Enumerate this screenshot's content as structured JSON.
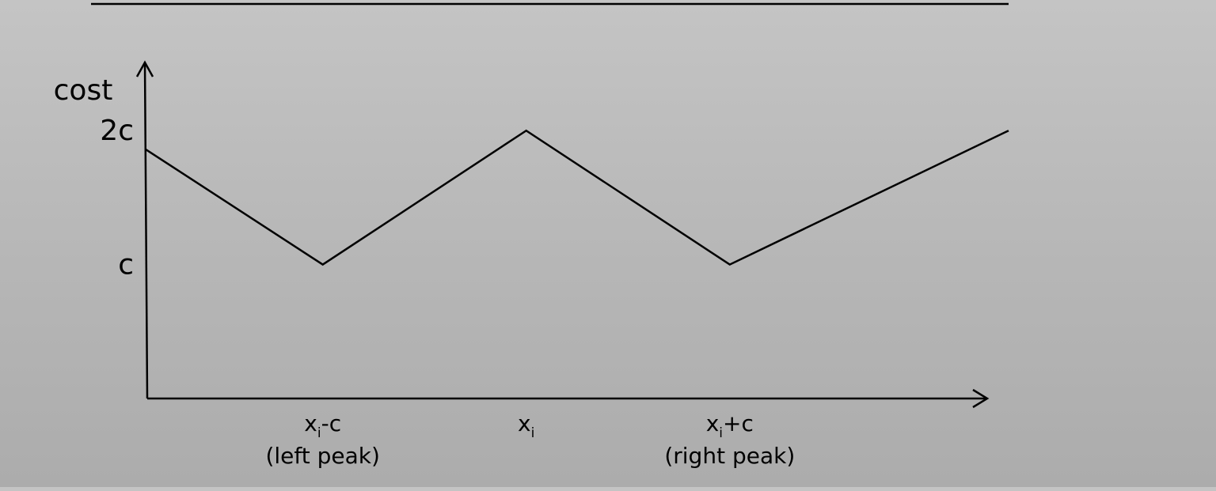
{
  "colors": {
    "background_top": "#c4c4c4",
    "background_bottom": "#acacac",
    "ink": "#000000"
  },
  "chart_data": {
    "type": "line",
    "title": "",
    "xlabel": "",
    "ylabel": "cost",
    "x_ticks": [
      {
        "x": -1,
        "base": "x",
        "sub": "i",
        "suffix": "-c",
        "note": "(left peak)"
      },
      {
        "x": 0,
        "base": "x",
        "sub": "i",
        "suffix": "",
        "note": ""
      },
      {
        "x": 1,
        "base": "x",
        "sub": "i",
        "suffix": "+c",
        "note": "(right peak)"
      }
    ],
    "y_ticks": [
      {
        "y": 2,
        "label": "2c"
      },
      {
        "y": 1,
        "label": "c"
      }
    ],
    "xlim": [
      -1.87,
      2.37
    ],
    "ylim": [
      0,
      2.45
    ],
    "grid": false,
    "series": [
      {
        "points": [
          [
            -1.87,
            1.86
          ],
          [
            -1,
            1
          ],
          [
            0,
            2
          ],
          [
            1,
            1
          ],
          [
            2.37,
            2
          ]
        ]
      }
    ]
  }
}
